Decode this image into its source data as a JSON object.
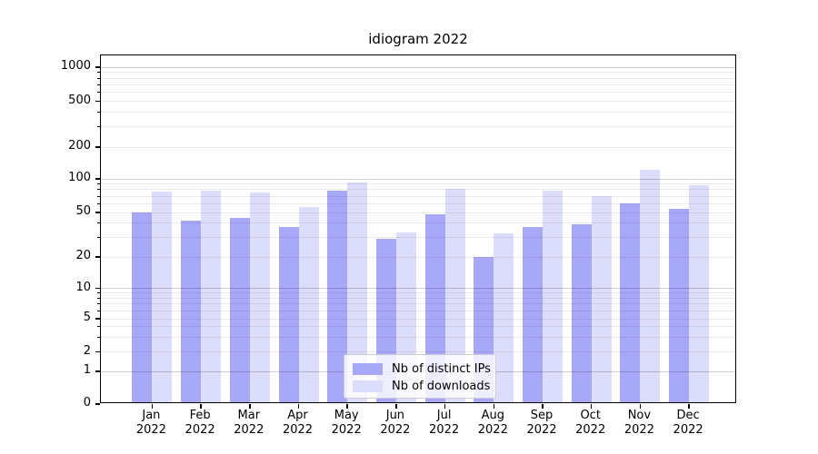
{
  "title": "idiogram 2022",
  "chart_data": {
    "type": "bar",
    "categories": [
      "Jan",
      "Feb",
      "Mar",
      "Apr",
      "May",
      "Jun",
      "Jul",
      "Aug",
      "Sep",
      "Oct",
      "Nov",
      "Dec"
    ],
    "year_label": "2022",
    "series": [
      {
        "name": "Nb of distinct IPs",
        "color": "#a8a8f8",
        "values": [
          50,
          42,
          44,
          37,
          77,
          29,
          48,
          20,
          37,
          39,
          60,
          53
        ]
      },
      {
        "name": "Nb of downloads",
        "color": "#dcdcfb",
        "values": [
          76,
          77,
          75,
          55,
          92,
          33,
          81,
          32,
          77,
          69,
          121,
          87
        ]
      }
    ],
    "yticks": [
      0,
      1,
      2,
      5,
      10,
      20,
      50,
      100,
      200,
      500,
      1000
    ],
    "yscale": "symlog",
    "ylim": [
      0,
      1000
    ],
    "grid": "both",
    "legend_position": "lower center",
    "xlabel": "",
    "ylabel": ""
  }
}
